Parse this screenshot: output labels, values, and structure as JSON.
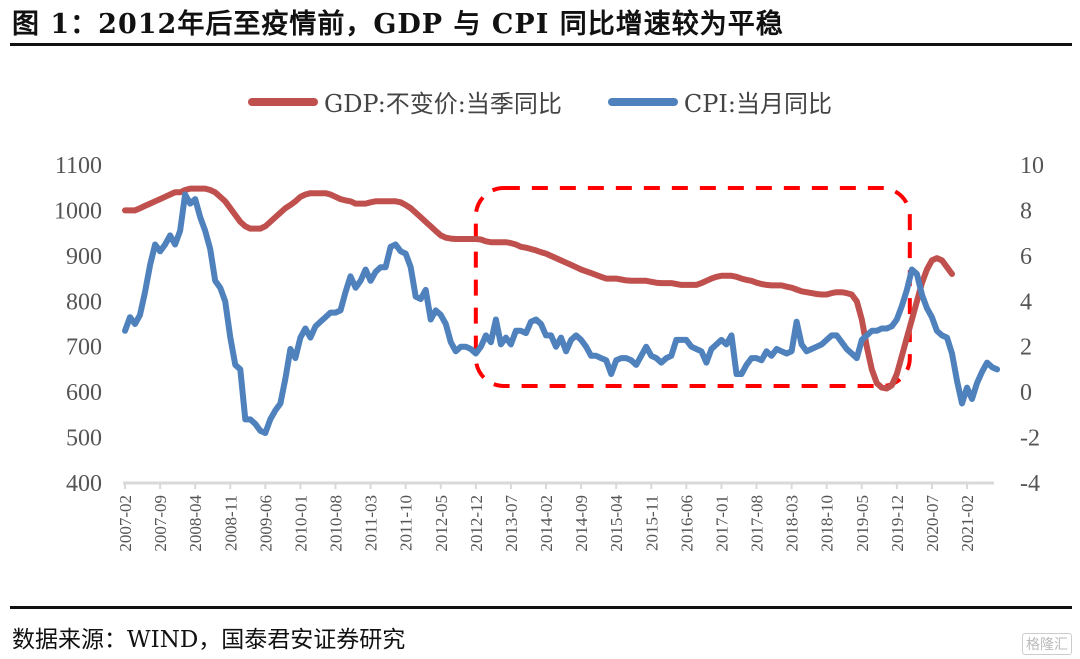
{
  "title": "图 1：2012年后至疫情前，GDP 与 CPI 同比增速较为平稳",
  "source": "数据来源：WIND，国泰君安证券研究",
  "watermark": "格隆汇",
  "chart_data": {
    "type": "line",
    "title": "图 1：2012年后至疫情前，GDP 与 CPI 同比增速较为平稳",
    "xlabel": "",
    "ylabel_left": "",
    "ylabel_right": "",
    "x_start": "2007-02",
    "x_end": "2021-07",
    "x_tick_labels": [
      "2007-02",
      "2007-09",
      "2008-04",
      "2008-11",
      "2009-06",
      "2010-01",
      "2010-08",
      "2011-03",
      "2011-10",
      "2012-05",
      "2012-12",
      "2013-07",
      "2014-02",
      "2014-09",
      "2015-04",
      "2015-11",
      "2016-06",
      "2017-01",
      "2017-08",
      "2018-03",
      "2018-10",
      "2019-05",
      "2019-12",
      "2020-07",
      "2021-02"
    ],
    "y_left": {
      "min": 400,
      "max": 1100,
      "ticks": [
        400,
        500,
        600,
        700,
        800,
        900,
        1000,
        1100
      ]
    },
    "y_right": {
      "min": -4,
      "max": 10,
      "ticks": [
        -4,
        -2,
        0,
        2,
        4,
        6,
        8,
        10
      ]
    },
    "grid": false,
    "legend_position": "top-center",
    "highlight_box": {
      "from": "2012-12",
      "to": "2019-09",
      "style": "red-dashed-rounded"
    },
    "series": [
      {
        "name": "GDP:不变价:当季同比",
        "axis": "left",
        "color": "#C0504D",
        "values": [
          1000,
          1000,
          1000,
          1005,
          1010,
          1015,
          1020,
          1025,
          1030,
          1035,
          1040,
          1040,
          1045,
          1048,
          1048,
          1048,
          1048,
          1045,
          1040,
          1030,
          1020,
          1005,
          990,
          975,
          965,
          960,
          960,
          960,
          965,
          975,
          985,
          995,
          1005,
          1012,
          1020,
          1030,
          1035,
          1038,
          1038,
          1038,
          1038,
          1035,
          1030,
          1025,
          1022,
          1020,
          1015,
          1015,
          1015,
          1018,
          1020,
          1020,
          1020,
          1020,
          1020,
          1018,
          1012,
          1005,
          995,
          985,
          975,
          965,
          955,
          945,
          940,
          938,
          937,
          937,
          937,
          937,
          937,
          936,
          932,
          930,
          930,
          930,
          930,
          928,
          925,
          920,
          918,
          915,
          912,
          908,
          905,
          900,
          895,
          890,
          885,
          880,
          875,
          870,
          866,
          862,
          858,
          854,
          850,
          850,
          850,
          848,
          846,
          845,
          845,
          845,
          845,
          843,
          841,
          840,
          840,
          840,
          838,
          836,
          836,
          836,
          836,
          840,
          845,
          850,
          854,
          856,
          856,
          856,
          854,
          850,
          847,
          845,
          841,
          838,
          836,
          835,
          835,
          835,
          832,
          830,
          826,
          822,
          820,
          818,
          816,
          815,
          815,
          818,
          820,
          820,
          818,
          815,
          800,
          760,
          700,
          650,
          620,
          610,
          608,
          615,
          640,
          680,
          720,
          760,
          800,
          840,
          870,
          890,
          895,
          890,
          875,
          860
        ]
      },
      {
        "name": "CPI:当月同比",
        "axis": "right",
        "color": "#4F81BD",
        "values": [
          2.7,
          3.3,
          3.0,
          3.4,
          4.4,
          5.6,
          6.5,
          6.2,
          6.5,
          6.9,
          6.5,
          7.1,
          8.7,
          8.3,
          8.5,
          7.7,
          7.1,
          6.3,
          4.9,
          4.6,
          4.0,
          2.4,
          1.2,
          1.0,
          -1.2,
          -1.2,
          -1.4,
          -1.7,
          -1.8,
          -1.2,
          -0.8,
          -0.5,
          0.6,
          1.9,
          1.5,
          2.4,
          2.8,
          2.4,
          2.9,
          3.1,
          3.3,
          3.5,
          3.5,
          3.6,
          4.4,
          5.1,
          4.6,
          4.9,
          5.4,
          4.9,
          5.3,
          5.5,
          5.5,
          6.4,
          6.5,
          6.2,
          6.1,
          5.5,
          4.2,
          4.1,
          4.5,
          3.2,
          3.6,
          3.4,
          3.0,
          2.2,
          1.8,
          2.0,
          2.0,
          1.9,
          1.7,
          2.0,
          2.5,
          2.2,
          3.2,
          2.1,
          2.4,
          2.1,
          2.7,
          2.7,
          2.6,
          3.1,
          3.2,
          3.0,
          2.5,
          2.5,
          2.0,
          2.4,
          1.8,
          2.3,
          2.5,
          2.3,
          2.0,
          1.6,
          1.6,
          1.5,
          1.4,
          0.8,
          1.4,
          1.5,
          1.5,
          1.4,
          1.2,
          1.6,
          2.0,
          1.6,
          1.5,
          1.3,
          1.5,
          1.6,
          2.3,
          2.3,
          2.3,
          2.0,
          1.9,
          1.8,
          1.3,
          1.9,
          2.1,
          2.3,
          2.1,
          2.5,
          0.8,
          0.8,
          1.2,
          1.5,
          1.5,
          1.4,
          1.8,
          1.6,
          1.9,
          1.8,
          1.7,
          1.8,
          3.1,
          2.1,
          1.8,
          1.9,
          2.0,
          2.1,
          2.3,
          2.5,
          2.5,
          2.2,
          1.9,
          1.7,
          1.5,
          2.3,
          2.5,
          2.7,
          2.7,
          2.8,
          2.8,
          2.9,
          3.2,
          3.8,
          4.5,
          5.4,
          5.2,
          4.3,
          3.7,
          3.3,
          2.7,
          2.5,
          2.4,
          1.7,
          0.5,
          -0.5,
          0.2,
          -0.3,
          0.4,
          0.9,
          1.3,
          1.1,
          1.0
        ]
      }
    ]
  }
}
